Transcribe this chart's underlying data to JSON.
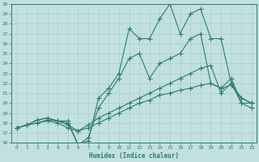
{
  "xlabel": "Humidex (Indice chaleur)",
  "xlim": [
    -0.5,
    23.5
  ],
  "ylim": [
    16,
    30
  ],
  "xticks": [
    0,
    1,
    2,
    3,
    4,
    5,
    6,
    7,
    8,
    9,
    10,
    11,
    12,
    13,
    14,
    15,
    16,
    17,
    18,
    19,
    20,
    21,
    22,
    23
  ],
  "yticks": [
    16,
    17,
    18,
    19,
    20,
    21,
    22,
    23,
    24,
    25,
    26,
    27,
    28,
    29,
    30
  ],
  "line_color": "#2e7d72",
  "bg_color": "#c2e0e0",
  "grid_color": "#a8cccc",
  "series": [
    {
      "x": [
        0,
        1,
        2,
        3,
        4,
        5,
        6,
        7,
        8,
        9,
        10,
        11,
        12,
        13,
        14,
        15,
        16,
        17,
        18,
        19,
        20,
        21,
        22,
        23
      ],
      "y": [
        17.5,
        17.8,
        18.3,
        18.5,
        18.2,
        18.2,
        15.8,
        16.2,
        20.5,
        21.5,
        23.0,
        27.5,
        26.5,
        26.5,
        28.5,
        30.0,
        27.0,
        29.0,
        29.5,
        26.5,
        26.5,
        22.0,
        20.0,
        20.0
      ]
    },
    {
      "x": [
        0,
        1,
        2,
        3,
        4,
        5,
        6,
        7,
        8,
        9,
        10,
        11,
        12,
        13,
        14,
        15,
        16,
        17,
        18,
        19,
        20,
        21,
        22,
        23
      ],
      "y": [
        17.5,
        17.8,
        18.3,
        18.5,
        18.2,
        18.0,
        15.8,
        16.5,
        19.5,
        21.0,
        22.5,
        24.5,
        25.0,
        22.5,
        24.0,
        24.5,
        25.0,
        26.5,
        27.0,
        22.0,
        21.5,
        22.5,
        20.0,
        19.5
      ]
    },
    {
      "x": [
        0,
        1,
        2,
        3,
        4,
        5,
        6,
        7,
        8,
        9,
        10,
        11,
        12,
        13,
        14,
        15,
        16,
        17,
        18,
        19,
        20,
        21,
        22,
        23
      ],
      "y": [
        17.5,
        17.8,
        18.0,
        18.3,
        18.2,
        17.8,
        17.2,
        17.8,
        18.5,
        19.0,
        19.5,
        20.0,
        20.5,
        21.0,
        21.5,
        22.0,
        22.5,
        23.0,
        23.5,
        23.8,
        21.0,
        22.0,
        20.5,
        20.0
      ]
    },
    {
      "x": [
        0,
        1,
        2,
        3,
        4,
        5,
        6,
        7,
        8,
        9,
        10,
        11,
        12,
        13,
        14,
        15,
        16,
        17,
        18,
        19,
        20,
        21,
        22,
        23
      ],
      "y": [
        17.5,
        17.8,
        18.0,
        18.2,
        18.0,
        17.5,
        17.2,
        17.5,
        18.0,
        18.5,
        19.0,
        19.5,
        20.0,
        20.3,
        20.8,
        21.0,
        21.3,
        21.5,
        21.8,
        22.0,
        21.5,
        21.8,
        20.5,
        20.0
      ]
    }
  ]
}
